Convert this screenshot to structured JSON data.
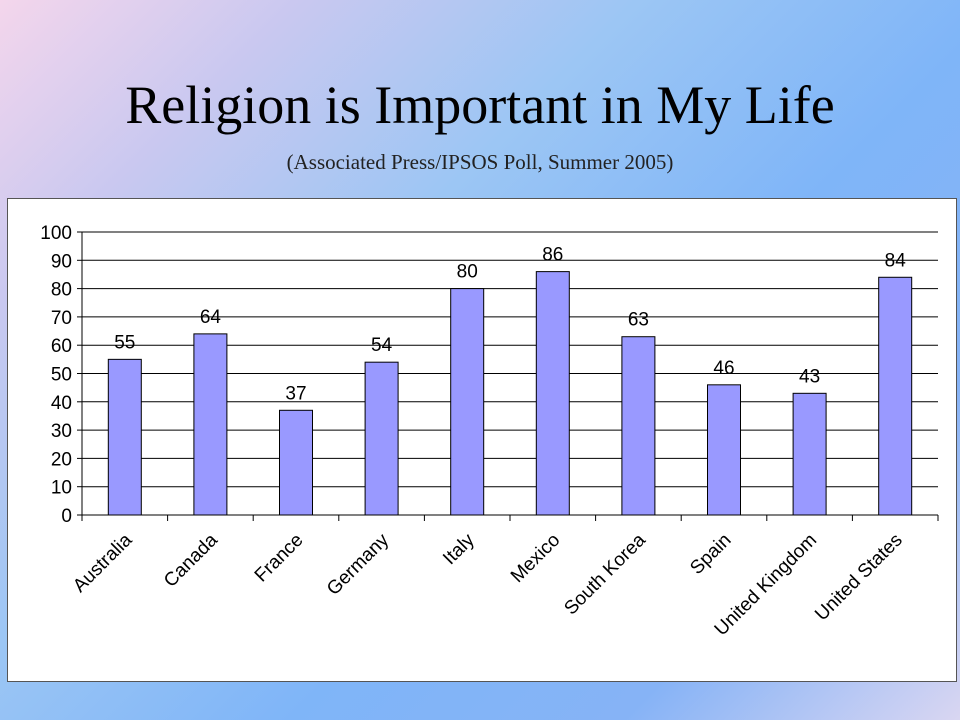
{
  "slide": {
    "title": "Religion is Important in My Life",
    "subtitle": "(Associated Press/IPSOS Poll, Summer 2005)"
  },
  "colors": {
    "bar_fill": "#9999ff",
    "bar_stroke": "#000000",
    "grid": "#000000"
  },
  "chart_data": {
    "type": "bar",
    "title": "",
    "xlabel": "",
    "ylabel": "",
    "ylim": [
      0,
      100
    ],
    "yticks": [
      0,
      10,
      20,
      30,
      40,
      50,
      60,
      70,
      80,
      90,
      100
    ],
    "grid": true,
    "categories": [
      "Australia",
      "Canada",
      "France",
      "Germany",
      "Italy",
      "Mexico",
      "South Korea",
      "Spain",
      "United Kingdom",
      "United States"
    ],
    "values": [
      55,
      64,
      37,
      54,
      80,
      86,
      63,
      46,
      43,
      84
    ],
    "data_labels": [
      "55",
      "64",
      "37",
      "54",
      "80",
      "86",
      "63",
      "46",
      "43",
      "84"
    ]
  }
}
